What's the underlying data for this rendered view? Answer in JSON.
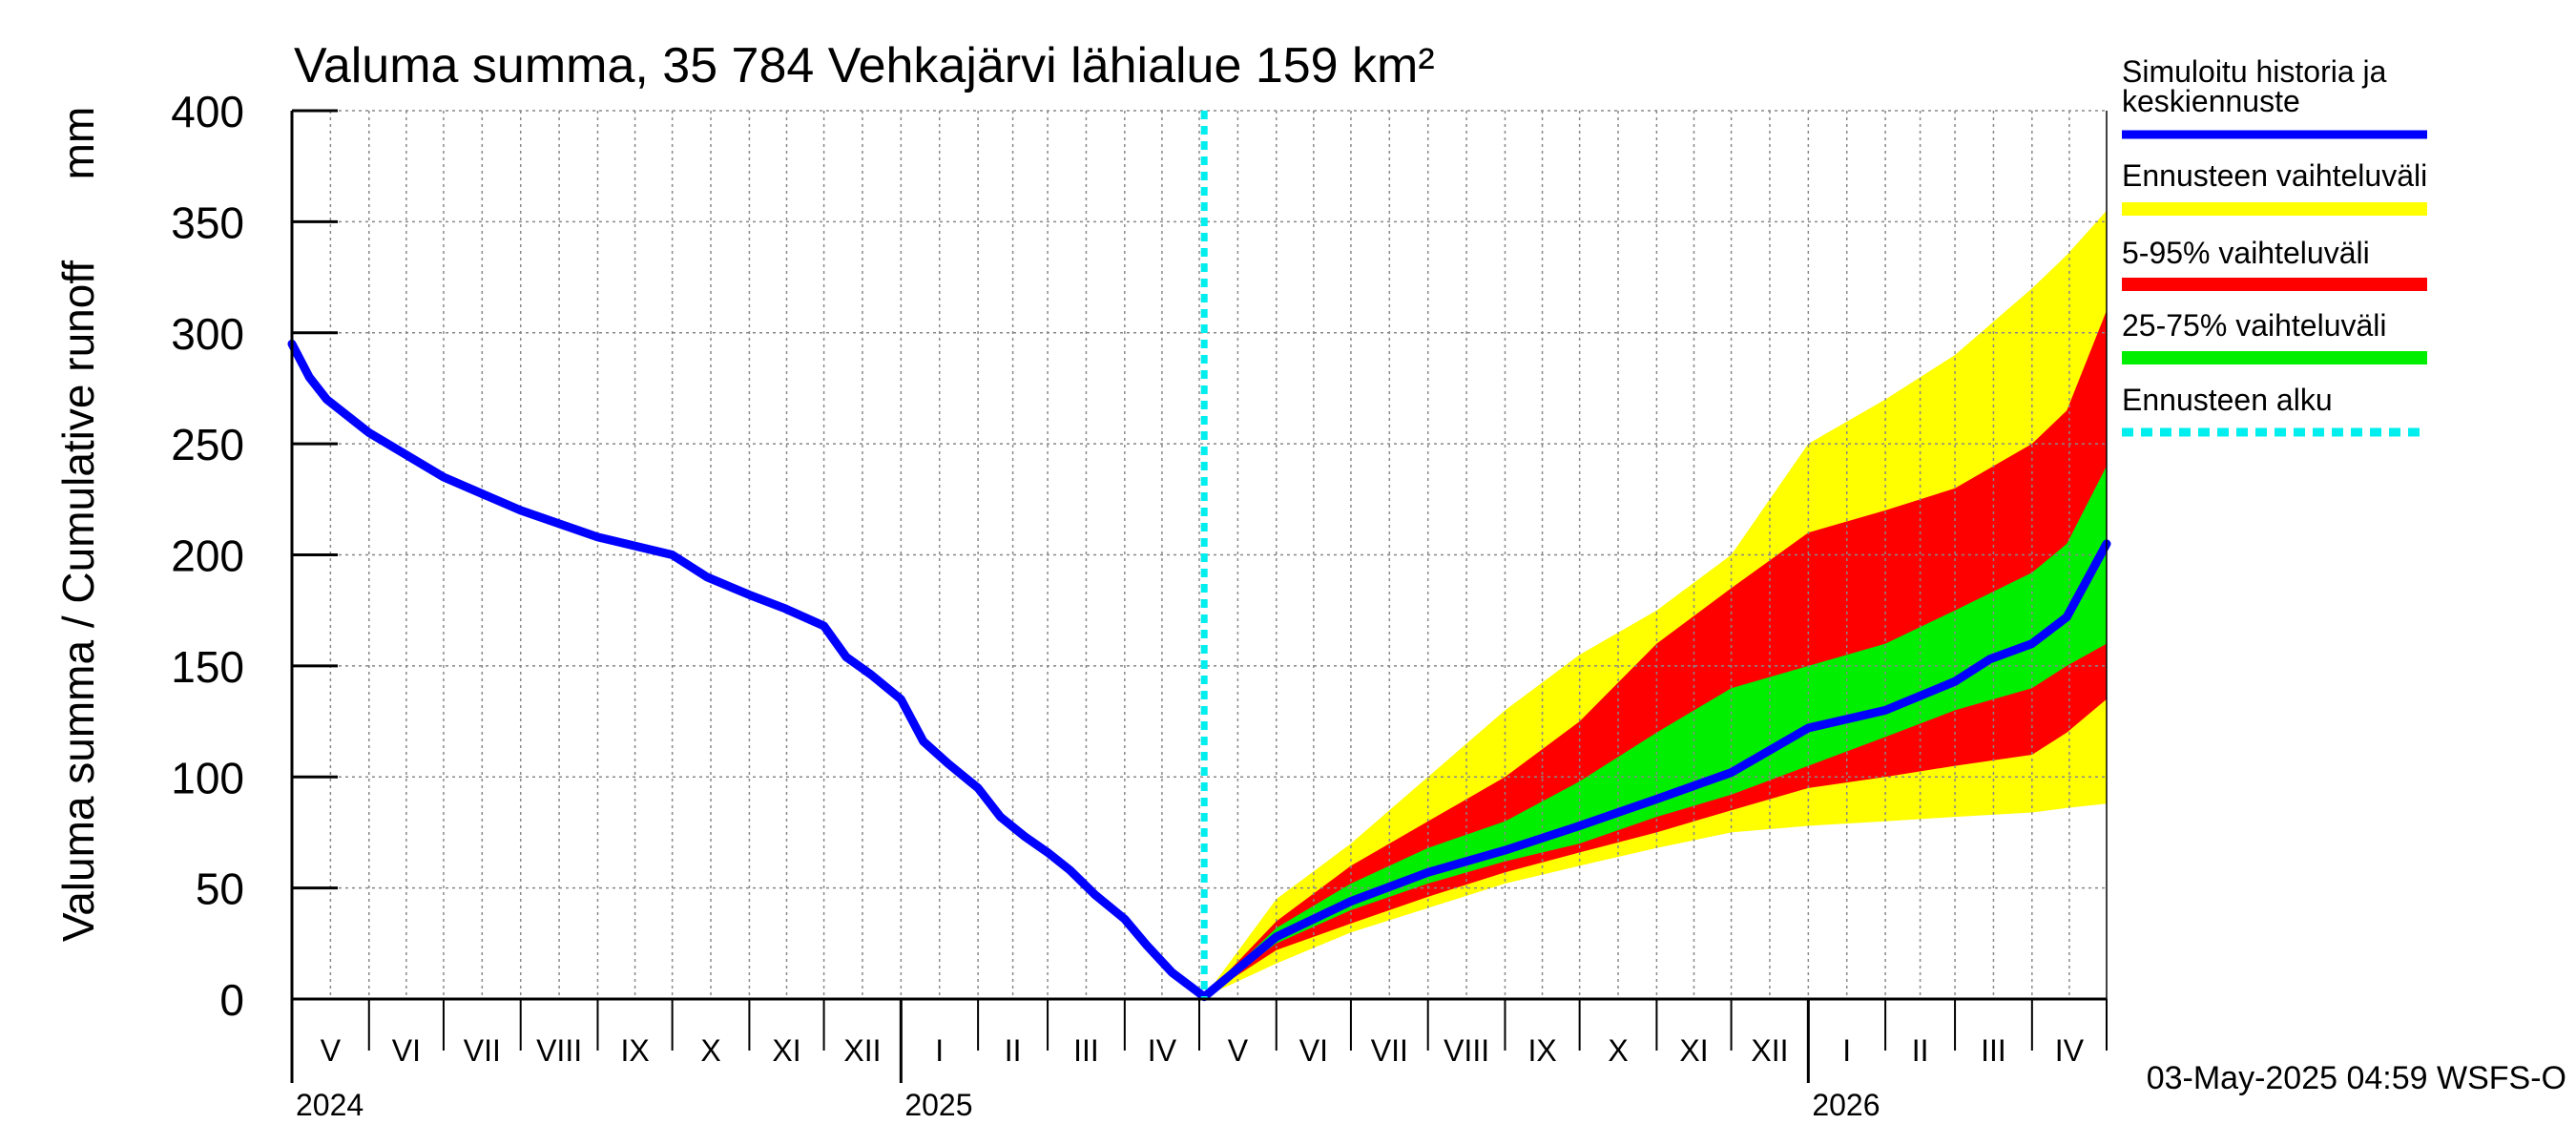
{
  "chart_data": {
    "type": "area",
    "title": "Valuma summa, 35 784 Vehkajärvi lähialue 159 km²",
    "ylabel": "Valuma summa / Cumulative runoff",
    "yunit": "mm",
    "ylim": [
      0,
      400
    ],
    "yticks": [
      0,
      50,
      100,
      150,
      200,
      250,
      300,
      350,
      400
    ],
    "xlim": [
      "2024-05-01",
      "2026-05-01"
    ],
    "grid": true,
    "forecast_start": "2025-05-03",
    "months": [
      {
        "label": "V",
        "start": "2024-05-01"
      },
      {
        "label": "VI",
        "start": "2024-06-01"
      },
      {
        "label": "VII",
        "start": "2024-07-01"
      },
      {
        "label": "VIII",
        "start": "2024-08-01"
      },
      {
        "label": "IX",
        "start": "2024-09-01"
      },
      {
        "label": "X",
        "start": "2024-10-01"
      },
      {
        "label": "XI",
        "start": "2024-11-01"
      },
      {
        "label": "XII",
        "start": "2024-12-01"
      },
      {
        "label": "I",
        "start": "2025-01-01"
      },
      {
        "label": "II",
        "start": "2025-02-01"
      },
      {
        "label": "III",
        "start": "2025-03-01"
      },
      {
        "label": "IV",
        "start": "2025-04-01"
      },
      {
        "label": "V",
        "start": "2025-05-01"
      },
      {
        "label": "VI",
        "start": "2025-06-01"
      },
      {
        "label": "VII",
        "start": "2025-07-01"
      },
      {
        "label": "VIII",
        "start": "2025-08-01"
      },
      {
        "label": "IX",
        "start": "2025-09-01"
      },
      {
        "label": "X",
        "start": "2025-10-01"
      },
      {
        "label": "XI",
        "start": "2025-11-01"
      },
      {
        "label": "XII",
        "start": "2025-12-01"
      },
      {
        "label": "I",
        "start": "2026-01-01"
      },
      {
        "label": "II",
        "start": "2026-02-01"
      },
      {
        "label": "III",
        "start": "2026-03-01"
      },
      {
        "label": "IV",
        "start": "2026-04-01"
      }
    ],
    "years": [
      {
        "label": "2024",
        "start": "2024-05-01"
      },
      {
        "label": "2025",
        "start": "2025-01-01"
      },
      {
        "label": "2026",
        "start": "2026-01-01"
      }
    ],
    "series": [
      {
        "name": "Simuloitu historia ja keskiennuste",
        "color": "#0000ff",
        "points": [
          [
            "2024-05-01",
            295
          ],
          [
            "2024-05-08",
            280
          ],
          [
            "2024-05-15",
            270
          ],
          [
            "2024-06-01",
            255
          ],
          [
            "2024-07-01",
            235
          ],
          [
            "2024-08-01",
            220
          ],
          [
            "2024-09-01",
            208
          ],
          [
            "2024-10-01",
            200
          ],
          [
            "2024-10-15",
            190
          ],
          [
            "2024-11-01",
            182
          ],
          [
            "2024-11-15",
            176
          ],
          [
            "2024-12-01",
            168
          ],
          [
            "2024-12-10",
            154
          ],
          [
            "2024-12-20",
            146
          ],
          [
            "2025-01-01",
            135
          ],
          [
            "2025-01-10",
            116
          ],
          [
            "2025-01-20",
            106
          ],
          [
            "2025-02-01",
            95
          ],
          [
            "2025-02-10",
            82
          ],
          [
            "2025-02-20",
            73
          ],
          [
            "2025-03-01",
            66
          ],
          [
            "2025-03-10",
            58
          ],
          [
            "2025-03-20",
            47
          ],
          [
            "2025-04-01",
            36
          ],
          [
            "2025-04-10",
            24
          ],
          [
            "2025-04-20",
            12
          ],
          [
            "2025-05-03",
            1
          ],
          [
            "2025-06-01",
            28
          ],
          [
            "2025-07-01",
            44
          ],
          [
            "2025-08-01",
            57
          ],
          [
            "2025-09-01",
            67
          ],
          [
            "2025-10-01",
            78
          ],
          [
            "2025-11-01",
            90
          ],
          [
            "2025-12-01",
            102
          ],
          [
            "2026-01-01",
            122
          ],
          [
            "2026-02-01",
            130
          ],
          [
            "2026-03-01",
            143
          ],
          [
            "2026-03-15",
            153
          ],
          [
            "2026-04-01",
            160
          ],
          [
            "2026-04-15",
            172
          ],
          [
            "2026-05-01",
            205
          ]
        ]
      }
    ],
    "bands": [
      {
        "name": "Ennusteen vaihteluväli",
        "color": "#ffff00",
        "dates": [
          "2025-05-03",
          "2025-06-01",
          "2025-07-01",
          "2025-08-01",
          "2025-09-01",
          "2025-10-01",
          "2025-11-01",
          "2025-12-01",
          "2026-01-01",
          "2026-02-01",
          "2026-03-01",
          "2026-04-01",
          "2026-04-15",
          "2026-05-01"
        ],
        "low": [
          1,
          16,
          30,
          41,
          52,
          60,
          68,
          75,
          78,
          80,
          82,
          84,
          86,
          88
        ],
        "high": [
          1,
          45,
          70,
          100,
          130,
          155,
          175,
          200,
          250,
          270,
          290,
          320,
          335,
          355
        ]
      },
      {
        "name": "5-95% vaihteluväli",
        "color": "#ff0000",
        "dates": [
          "2025-05-03",
          "2025-06-01",
          "2025-07-01",
          "2025-08-01",
          "2025-09-01",
          "2025-10-01",
          "2025-11-01",
          "2025-12-01",
          "2026-01-01",
          "2026-02-01",
          "2026-03-01",
          "2026-04-01",
          "2026-04-15",
          "2026-05-01"
        ],
        "low": [
          1,
          22,
          34,
          46,
          57,
          66,
          75,
          85,
          95,
          100,
          105,
          110,
          120,
          135
        ],
        "high": [
          1,
          35,
          60,
          80,
          100,
          125,
          160,
          185,
          210,
          220,
          230,
          250,
          265,
          310
        ]
      },
      {
        "name": "25-75% vaihteluväli",
        "color": "#00ee00",
        "dates": [
          "2025-05-03",
          "2025-06-01",
          "2025-07-01",
          "2025-08-01",
          "2025-09-01",
          "2025-10-01",
          "2025-11-01",
          "2025-12-01",
          "2026-01-01",
          "2026-02-01",
          "2026-03-01",
          "2026-04-01",
          "2026-04-15",
          "2026-05-01"
        ],
        "low": [
          1,
          25,
          40,
          52,
          62,
          70,
          82,
          92,
          105,
          118,
          130,
          140,
          150,
          160
        ],
        "high": [
          1,
          32,
          52,
          68,
          80,
          98,
          120,
          140,
          150,
          160,
          175,
          192,
          205,
          240
        ]
      }
    ],
    "legend": {
      "placement": "right",
      "items": [
        {
          "label": "Simuloitu historia ja keskiennuste",
          "color": "#0000ff",
          "style": "line"
        },
        {
          "label": "Ennusteen vaihteluväli",
          "color": "#ffff00",
          "style": "band"
        },
        {
          "label": "5-95% vaihteluväli",
          "color": "#ff0000",
          "style": "band"
        },
        {
          "label": "25-75% vaihteluväli",
          "color": "#00ee00",
          "style": "band"
        },
        {
          "label": "Ennusteen alku",
          "color": "#00eeee",
          "style": "dashed"
        }
      ]
    },
    "footer": "03-May-2025 04:59 WSFS-O"
  }
}
